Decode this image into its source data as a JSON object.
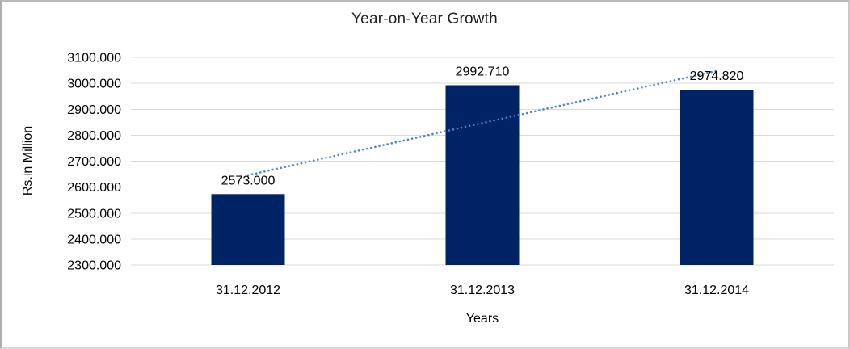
{
  "chart_data": {
    "type": "bar",
    "title": "Year-on-Year Growth",
    "xlabel": "Years",
    "ylabel": "Rs.in Million",
    "categories": [
      "31.12.2012",
      "31.12.2013",
      "31.12.2014"
    ],
    "values": [
      2573.0,
      2992.71,
      2974.82
    ],
    "data_labels": [
      "2573.000",
      "2992.710",
      "2974.820"
    ],
    "ylim": [
      2300,
      3100
    ],
    "ytick_step": 100,
    "ytick_labels": [
      "2300.000",
      "2400.000",
      "2500.000",
      "2600.000",
      "2700.000",
      "2800.000",
      "2900.000",
      "3000.000",
      "3100.000"
    ],
    "grid": true,
    "legend": "none",
    "bar_color": "#002366",
    "gridline_color": "#d9d9d9",
    "trendline": {
      "type": "linear",
      "style": "dotted",
      "color": "#4a86c8",
      "start_value": 2645.9,
      "end_value": 3047.8
    }
  }
}
